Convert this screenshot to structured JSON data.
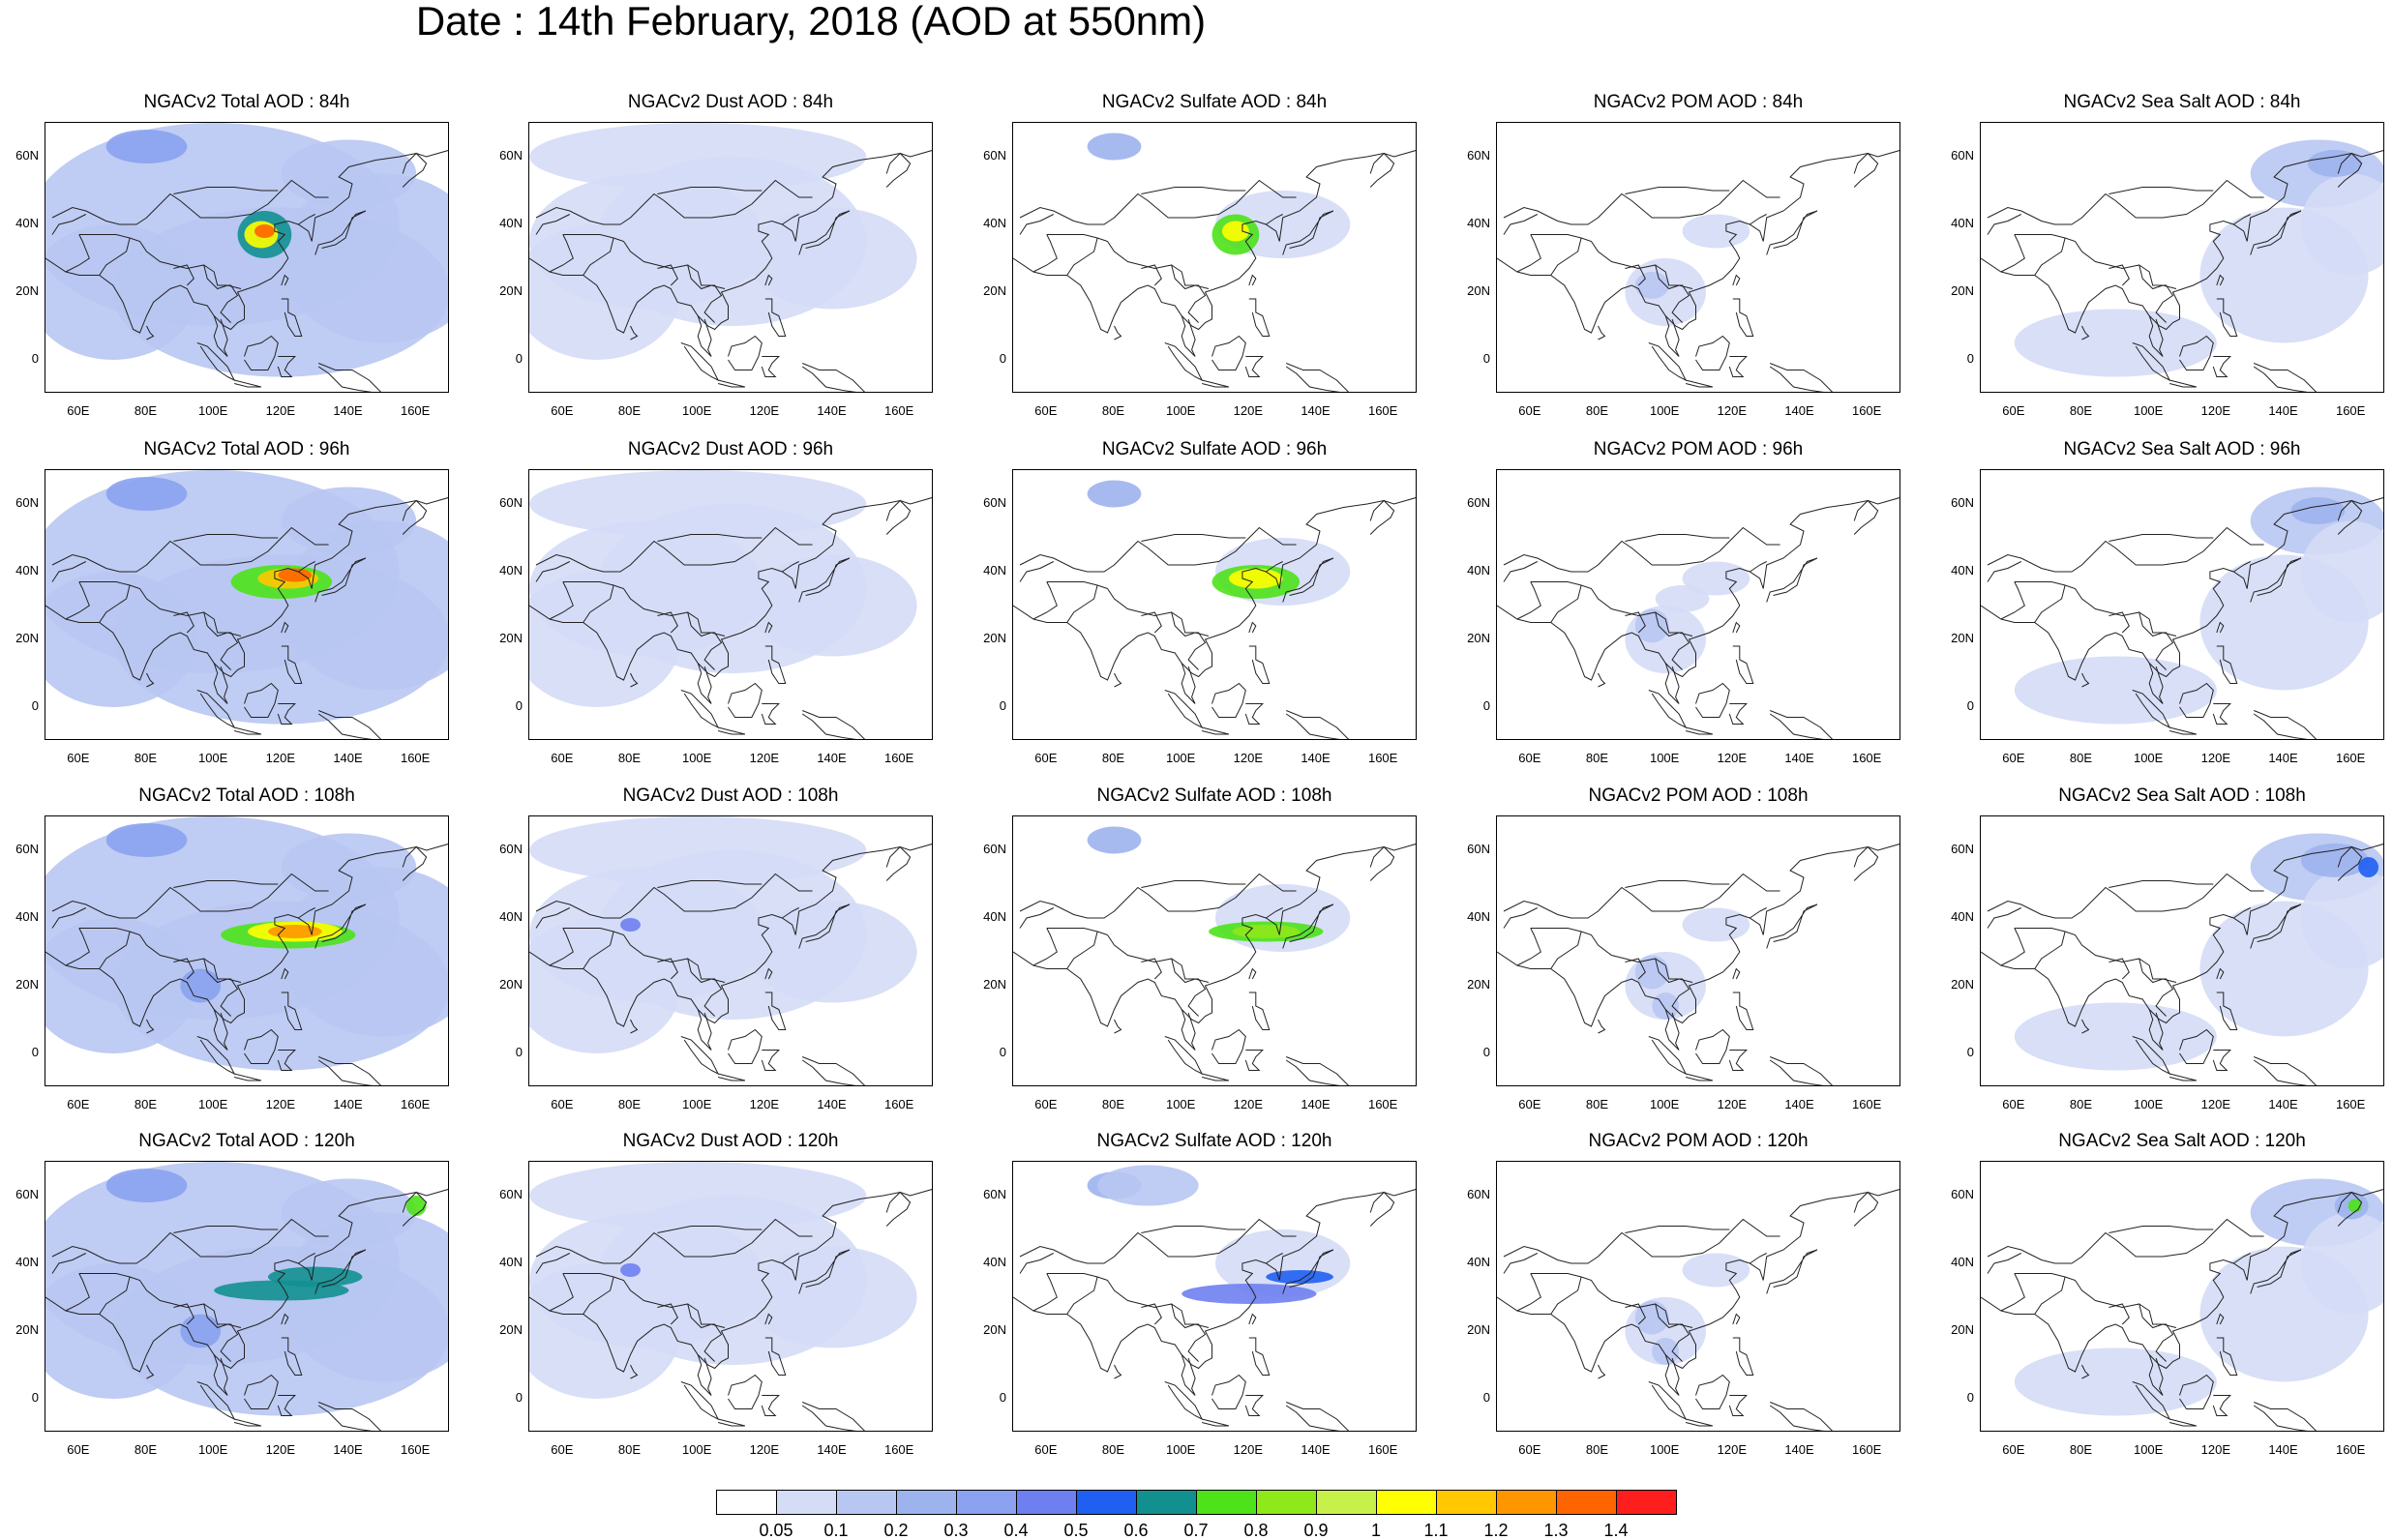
{
  "title": "Date : 14th February, 2018 (AOD at 550nm)",
  "panels": [
    [
      "NGACv2 Total AOD : 84h",
      "NGACv2 Dust AOD : 84h",
      "NGACv2 Sulfate AOD : 84h",
      "NGACv2 POM AOD : 84h",
      "NGACv2 Sea Salt AOD : 84h"
    ],
    [
      "NGACv2 Total AOD : 96h",
      "NGACv2 Dust AOD : 96h",
      "NGACv2 Sulfate AOD : 96h",
      "NGACv2 POM AOD : 96h",
      "NGACv2 Sea Salt AOD : 96h"
    ],
    [
      "NGACv2 Total AOD : 108h",
      "NGACv2 Dust AOD : 108h",
      "NGACv2 Sulfate AOD : 108h",
      "NGACv2 POM AOD : 108h",
      "NGACv2 Sea Salt AOD : 108h"
    ],
    [
      "NGACv2 Total AOD : 120h",
      "NGACv2 Dust AOD : 120h",
      "NGACv2 Sulfate AOD : 120h",
      "NGACv2 POM AOD : 120h",
      "NGACv2 Sea Salt  AOD : 120h"
    ]
  ],
  "map": {
    "lon_range": [
      50,
      170
    ],
    "lat_range": [
      -10,
      70
    ],
    "lon_ticks": [
      "60E",
      "80E",
      "100E",
      "120E",
      "140E",
      "160E"
    ],
    "lat_ticks": [
      "60N",
      "40N",
      "20N",
      "0"
    ]
  },
  "colorbar": {
    "labels": [
      "0.05",
      "0.1",
      "0.2",
      "0.3",
      "0.4",
      "0.5",
      "0.6",
      "0.7",
      "0.8",
      "0.9",
      "1",
      "1.1",
      "1.2",
      "1.3",
      "1.4"
    ],
    "colors": [
      "#ffffff",
      "#d4dcf6",
      "#b8c7f2",
      "#9db3ee",
      "#8aa2f0",
      "#6e7ff0",
      "#1f5ff2",
      "#129090",
      "#4ee21a",
      "#8fe81a",
      "#c8f04a",
      "#ffff00",
      "#ffc800",
      "#ff9600",
      "#ff6400",
      "#ff1e1e"
    ]
  }
}
